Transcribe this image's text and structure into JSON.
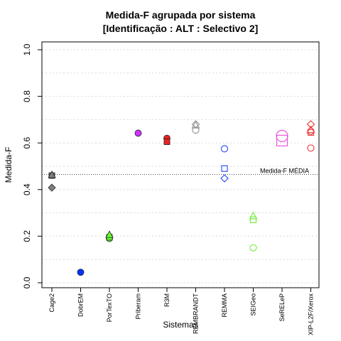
{
  "chart_data": {
    "type": "scatter",
    "title": "Medida-F agrupada por sistema",
    "subtitle": "[Identificação : ALT : Selectivo 2]",
    "xlabel": "Sistemas",
    "ylabel": "Medida-F",
    "ylim": [
      0,
      1.0
    ],
    "yticks": [
      "0.0",
      "0.2",
      "0.4",
      "0.6",
      "0.8",
      "1.0"
    ],
    "grid": "horizontal dotted",
    "categories": [
      "Cage2",
      "DobrEM",
      "PorTexTO",
      "Priberam",
      "R3M",
      "REMBRANDT",
      "REMMA",
      "SEIGeo",
      "SeRELeP",
      "XIP-L2F/Xerox"
    ],
    "reference_line": {
      "label": "Medida-F MÉDIA",
      "value": 0.465
    },
    "points": [
      {
        "category": "Cage2",
        "y": 0.46,
        "shape": "square",
        "color": "#808080",
        "filled": true
      },
      {
        "category": "Cage2",
        "y": 0.462,
        "shape": "triangle",
        "color": "#808080",
        "filled": true
      },
      {
        "category": "Cage2",
        "y": 0.408,
        "shape": "diamond",
        "color": "#808080",
        "filled": true
      },
      {
        "category": "DobrEM",
        "y": 0.045,
        "shape": "circle",
        "color": "#0033ff",
        "filled": true
      },
      {
        "category": "PorTexTO",
        "y": 0.19,
        "shape": "circle",
        "color": "#66ff33",
        "filled": true
      },
      {
        "category": "PorTexTO",
        "y": 0.195,
        "shape": "square",
        "color": "#66ff33",
        "filled": true
      },
      {
        "category": "PorTexTO",
        "y": 0.205,
        "shape": "triangle",
        "color": "#66ff33",
        "filled": true
      },
      {
        "category": "Priberam",
        "y": 0.642,
        "shape": "circle",
        "color": "#cc33ff",
        "filled": true
      },
      {
        "category": "R3M",
        "y": 0.62,
        "shape": "circle",
        "color": "#ee2222",
        "filled": true
      },
      {
        "category": "R3M",
        "y": 0.605,
        "shape": "square",
        "color": "#ee2222",
        "filled": true
      },
      {
        "category": "REMBRANDT",
        "y": 0.68,
        "shape": "diamond",
        "color": "#999999",
        "filled": false
      },
      {
        "category": "REMBRANDT",
        "y": 0.675,
        "shape": "triangle",
        "color": "#999999",
        "filled": false
      },
      {
        "category": "REMBRANDT",
        "y": 0.655,
        "shape": "circle",
        "color": "#999999",
        "filled": false
      },
      {
        "category": "REMMA",
        "y": 0.575,
        "shape": "circle",
        "color": "#3355ff",
        "filled": false
      },
      {
        "category": "REMMA",
        "y": 0.49,
        "shape": "square",
        "color": "#3355ff",
        "filled": false
      },
      {
        "category": "REMMA",
        "y": 0.448,
        "shape": "diamond",
        "color": "#3355ff",
        "filled": false
      },
      {
        "category": "SEIGeo",
        "y": 0.285,
        "shape": "triangle",
        "color": "#77ee44",
        "filled": false
      },
      {
        "category": "SEIGeo",
        "y": 0.27,
        "shape": "square",
        "color": "#77ee44",
        "filled": false
      },
      {
        "category": "SEIGeo",
        "y": 0.15,
        "shape": "circle",
        "color": "#77ee44",
        "filled": false
      },
      {
        "category": "SeRELeP",
        "y": 0.63,
        "shape": "circle-large",
        "color": "#ee55dd",
        "filled": false
      },
      {
        "category": "SeRELeP",
        "y": 0.61,
        "shape": "square-large",
        "color": "#ee55dd",
        "filled": false
      },
      {
        "category": "XIP-L2F/Xerox",
        "y": 0.68,
        "shape": "diamond",
        "color": "#ee4444",
        "filled": false
      },
      {
        "category": "XIP-L2F/Xerox",
        "y": 0.655,
        "shape": "triangle",
        "color": "#ee4444",
        "filled": false
      },
      {
        "category": "XIP-L2F/Xerox",
        "y": 0.65,
        "shape": "circle",
        "color": "#ee4444",
        "filled": false
      },
      {
        "category": "XIP-L2F/Xerox",
        "y": 0.645,
        "shape": "square",
        "color": "#ee4444",
        "filled": false
      },
      {
        "category": "XIP-L2F/Xerox",
        "y": 0.578,
        "shape": "circle",
        "color": "#ee4444",
        "filled": false
      }
    ]
  }
}
